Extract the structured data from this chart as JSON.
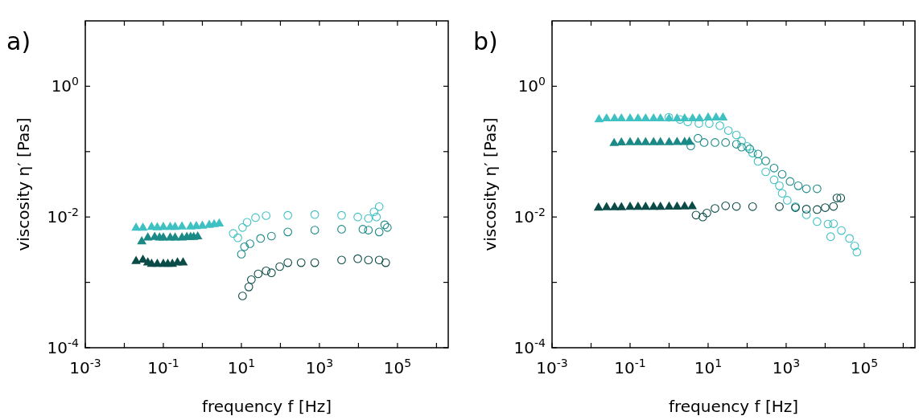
{
  "chart_data": [
    {
      "type": "scatter",
      "title": "a)",
      "xlabel": "frequency f [Hz]",
      "ylabel": "viscosity η′ [Pas]",
      "log": "xy",
      "xlim": [
        0.001,
        2000000
      ],
      "ylim": [
        0.0001,
        10
      ],
      "xticks": [
        {
          "value": 0.001,
          "label": "10$^{-3}$"
        },
        {
          "value": 0.01,
          "label": null
        },
        {
          "value": 0.1,
          "label": "10$^{-1}$"
        },
        {
          "value": 1,
          "label": null
        },
        {
          "value": 10,
          "label": "10$^{1}$"
        },
        {
          "value": 100,
          "label": null
        },
        {
          "value": 1000,
          "label": "10$^{3}$"
        },
        {
          "value": 10000,
          "label": null
        },
        {
          "value": 100000,
          "label": "10$^{5}$"
        },
        {
          "value": 1000000,
          "label": null
        }
      ],
      "yticks": [
        {
          "value": 0.0001,
          "label": "10$^{-4}$"
        },
        {
          "value": 0.001,
          "label": null
        },
        {
          "value": 0.01,
          "label": "10$^{-2}$"
        },
        {
          "value": 0.1,
          "label": null
        },
        {
          "value": 1,
          "label": "10$^{0}$"
        }
      ],
      "series": [
        {
          "color": "#3fc1c3",
          "marker": "triangle",
          "x": [
            0.02,
            0.03,
            0.05,
            0.07,
            0.1,
            0.15,
            0.2,
            0.3,
            0.5,
            0.7,
            1,
            1.5,
            2,
            2.7
          ],
          "values": [
            0.0068,
            0.0068,
            0.007,
            0.0069,
            0.007,
            0.007,
            0.007,
            0.0071,
            0.0071,
            0.0072,
            0.0073,
            0.0075,
            0.0077,
            0.0079
          ]
        },
        {
          "color": "#1b8a87",
          "marker": "triangle",
          "x": [
            0.028,
            0.04,
            0.06,
            0.08,
            0.1,
            0.15,
            0.2,
            0.3,
            0.4,
            0.5,
            0.6,
            0.76
          ],
          "values": [
            0.0042,
            0.0048,
            0.0049,
            0.0048,
            0.0048,
            0.0048,
            0.0048,
            0.0048,
            0.0049,
            0.0049,
            0.0049,
            0.005
          ]
        },
        {
          "color": "#0a4a47",
          "marker": "triangle",
          "x": [
            0.02,
            0.03,
            0.04,
            0.05,
            0.07,
            0.1,
            0.13,
            0.17,
            0.23,
            0.32
          ],
          "values": [
            0.0021,
            0.0022,
            0.002,
            0.0019,
            0.0019,
            0.0019,
            0.0019,
            0.0019,
            0.002,
            0.002
          ]
        },
        {
          "color": "#3fc1c3",
          "marker": "circle",
          "x": [
            6.2,
            8.1,
            10.7,
            14,
            23,
            43,
            155,
            760,
            3700,
            9600,
            18000,
            25000,
            29000,
            34000
          ],
          "values": [
            0.0056,
            0.0048,
            0.0069,
            0.0083,
            0.0098,
            0.0105,
            0.0106,
            0.0109,
            0.0106,
            0.01,
            0.0095,
            0.012,
            0.01,
            0.0144
          ]
        },
        {
          "color": "#1b8a87",
          "marker": "circle",
          "x": [
            10,
            12,
            16.6,
            31,
            59,
            155,
            760,
            3700,
            13000,
            18000,
            34000,
            47000,
            55000
          ],
          "values": [
            0.0027,
            0.0035,
            0.0039,
            0.0047,
            0.0051,
            0.0059,
            0.0063,
            0.0065,
            0.0065,
            0.0063,
            0.0059,
            0.0076,
            0.0069
          ]
        },
        {
          "color": "#0a4a47",
          "marker": "circle",
          "x": [
            10.7,
            15.5,
            18,
            27,
            43,
            59,
            96,
            155,
            340,
            760,
            3700,
            9600,
            18000,
            34000,
            50000
          ],
          "values": [
            0.00062,
            0.00085,
            0.0011,
            0.00135,
            0.0015,
            0.0014,
            0.00174,
            0.002,
            0.002,
            0.002,
            0.0022,
            0.0023,
            0.0022,
            0.0022,
            0.002
          ]
        }
      ]
    },
    {
      "type": "scatter",
      "title": "b)",
      "xlabel": "frequency f [Hz]",
      "ylabel": "viscosity η′ [Pas]",
      "log": "xy",
      "xlim": [
        0.001,
        2000000
      ],
      "ylim": [
        0.0001,
        10
      ],
      "xticks": [
        {
          "value": 0.001,
          "label": "10$^{-3}$"
        },
        {
          "value": 0.01,
          "label": null
        },
        {
          "value": 0.1,
          "label": "10$^{-1}$"
        },
        {
          "value": 1,
          "label": null
        },
        {
          "value": 10,
          "label": "10$^{1}$"
        },
        {
          "value": 100,
          "label": null
        },
        {
          "value": 1000,
          "label": "10$^{3}$"
        },
        {
          "value": 10000,
          "label": null
        },
        {
          "value": 100000,
          "label": "10$^{5}$"
        },
        {
          "value": 1000000,
          "label": null
        }
      ],
      "yticks": [
        {
          "value": 0.0001,
          "label": "10$^{-4}$"
        },
        {
          "value": 0.001,
          "label": null
        },
        {
          "value": 0.01,
          "label": "10$^{-2}$"
        },
        {
          "value": 0.1,
          "label": null
        },
        {
          "value": 1,
          "label": "10$^{0}$"
        }
      ],
      "series": [
        {
          "color": "#3fc1c3",
          "marker": "triangle",
          "x": [
            0.016,
            0.025,
            0.04,
            0.06,
            0.1,
            0.16,
            0.25,
            0.4,
            0.6,
            1,
            1.6,
            2.5,
            4,
            6,
            10,
            16,
            24
          ],
          "values": [
            0.31,
            0.32,
            0.32,
            0.32,
            0.32,
            0.32,
            0.32,
            0.32,
            0.32,
            0.32,
            0.32,
            0.32,
            0.32,
            0.32,
            0.33,
            0.33,
            0.33
          ]
        },
        {
          "color": "#1b8a87",
          "marker": "triangle",
          "x": [
            0.039,
            0.06,
            0.1,
            0.16,
            0.25,
            0.4,
            0.6,
            1,
            1.6,
            2.5,
            3.3
          ],
          "values": [
            0.134,
            0.137,
            0.138,
            0.138,
            0.138,
            0.138,
            0.138,
            0.138,
            0.139,
            0.139,
            0.14
          ]
        },
        {
          "color": "#0a4a47",
          "marker": "triangle",
          "x": [
            0.0155,
            0.025,
            0.04,
            0.06,
            0.1,
            0.16,
            0.25,
            0.4,
            0.6,
            1,
            1.6,
            2.5,
            3.9
          ],
          "values": [
            0.0138,
            0.014,
            0.014,
            0.014,
            0.0142,
            0.0142,
            0.0142,
            0.0142,
            0.0142,
            0.0143,
            0.0143,
            0.0144,
            0.0145
          ]
        },
        {
          "color": "#3fc1c3",
          "marker": "circle",
          "x": [
            0.98,
            1.9,
            3,
            5.8,
            10.7,
            20,
            33,
            53,
            72,
            100,
            138,
            190,
            300,
            490,
            670,
            790,
            1070,
            1730,
            3300,
            6200,
            11800,
            13800,
            16300,
            26000,
            42000,
            57000,
            65000
          ],
          "values": [
            0.335,
            0.31,
            0.285,
            0.27,
            0.27,
            0.25,
            0.21,
            0.18,
            0.145,
            0.12,
            0.095,
            0.071,
            0.049,
            0.037,
            0.03,
            0.023,
            0.018,
            0.0144,
            0.0108,
            0.0085,
            0.0078,
            0.005,
            0.0079,
            0.0062,
            0.0047,
            0.0036,
            0.0029
          ]
        },
        {
          "color": "#1b8a87",
          "marker": "circle",
          "x": [
            3.6,
            5.5,
            7.9,
            15,
            28,
            53,
            72,
            117,
            190,
            300,
            490,
            790,
            1260,
            2040,
            3300,
            6200
          ],
          "values": [
            0.122,
            0.16,
            0.138,
            0.138,
            0.138,
            0.13,
            0.117,
            0.11,
            0.092,
            0.072,
            0.056,
            0.045,
            0.035,
            0.03,
            0.027,
            0.027
          ]
        },
        {
          "color": "#0a4a47",
          "marker": "circle",
          "x": [
            4.9,
            7.3,
            9.3,
            15,
            28,
            53,
            138,
            670,
            1730,
            3300,
            6200,
            10000,
            16300,
            20000,
            25000
          ],
          "values": [
            0.0107,
            0.01,
            0.0115,
            0.0135,
            0.0148,
            0.0145,
            0.0144,
            0.0144,
            0.0139,
            0.0132,
            0.013,
            0.0139,
            0.0145,
            0.0195,
            0.0195
          ]
        }
      ]
    }
  ]
}
